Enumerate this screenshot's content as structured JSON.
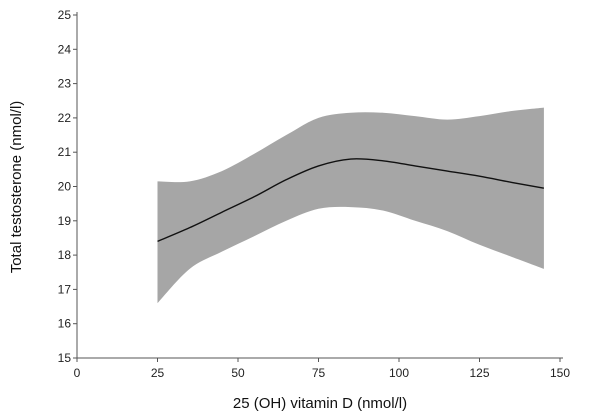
{
  "chart_data": {
    "type": "line",
    "title": "",
    "xlabel": "25 (OH) vitamin D (nmol/l)",
    "ylabel": "Total testosterone (nmol/l)",
    "xlim": [
      0,
      150
    ],
    "ylim": [
      15,
      25
    ],
    "x_ticks": [
      0,
      25,
      50,
      75,
      100,
      125,
      150
    ],
    "y_ticks": [
      15,
      16,
      17,
      18,
      19,
      20,
      21,
      22,
      23,
      24,
      25
    ],
    "grid": false,
    "legend": "none",
    "series": [
      {
        "x": [
          25,
          35,
          45,
          55,
          65,
          75,
          85,
          95,
          105,
          115,
          125,
          135,
          145
        ],
        "y": [
          18.4,
          18.8,
          19.25,
          19.7,
          20.2,
          20.6,
          20.8,
          20.75,
          20.6,
          20.45,
          20.3,
          20.12,
          19.95
        ],
        "lower": [
          16.6,
          17.6,
          18.1,
          18.55,
          19.0,
          19.35,
          19.4,
          19.3,
          19.0,
          18.7,
          18.3,
          17.95,
          17.6
        ],
        "upper": [
          20.15,
          20.15,
          20.45,
          20.95,
          21.5,
          22.0,
          22.15,
          22.15,
          22.05,
          21.95,
          22.05,
          22.2,
          22.3
        ]
      }
    ],
    "colors": {
      "band": "#a6a6a6",
      "line": "#111111",
      "axis": "#555555"
    }
  }
}
